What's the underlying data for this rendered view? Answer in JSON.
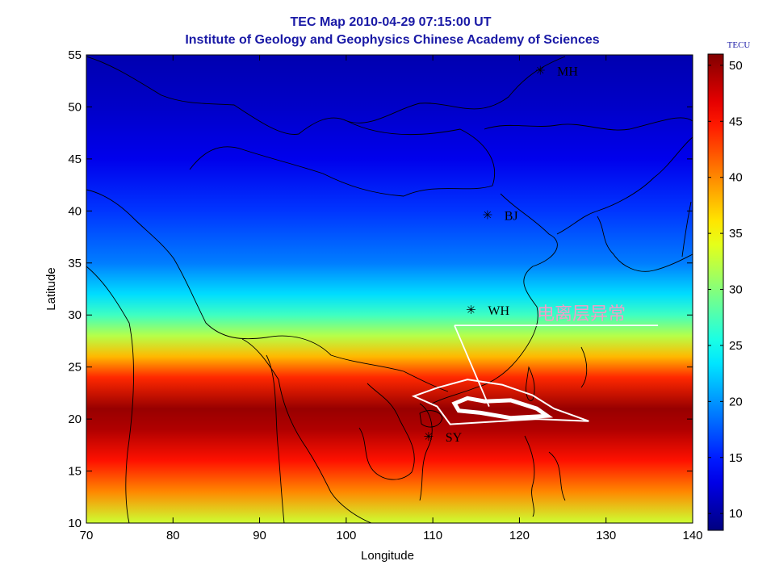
{
  "chart_data": {
    "type": "heatmap",
    "title": "TEC Map 2010-04-29 07:15:00 UT",
    "subtitle": "Institute of Geology and Geophysics Chinese Academy of Sciences",
    "xlabel": "Longitude",
    "ylabel": "Latitude",
    "xlim": [
      70,
      140
    ],
    "ylim": [
      10,
      55
    ],
    "xticks": [
      70,
      80,
      90,
      100,
      110,
      120,
      130,
      140
    ],
    "yticks": [
      10,
      15,
      20,
      25,
      30,
      35,
      40,
      45,
      50,
      55
    ],
    "colorbar": {
      "label": "TECU",
      "range": [
        8.5,
        51
      ],
      "ticks": [
        10,
        15,
        20,
        25,
        30,
        35,
        40,
        45,
        50
      ],
      "colormap": "jet"
    },
    "tec_profile_by_latitude": [
      {
        "lat": 10,
        "tec": 33
      },
      {
        "lat": 13,
        "tec": 40
      },
      {
        "lat": 16,
        "tec": 45
      },
      {
        "lat": 19,
        "tec": 49
      },
      {
        "lat": 21,
        "tec": 50
      },
      {
        "lat": 24,
        "tec": 44
      },
      {
        "lat": 26,
        "tec": 38
      },
      {
        "lat": 28,
        "tec": 32
      },
      {
        "lat": 30,
        "tec": 27
      },
      {
        "lat": 32,
        "tec": 23
      },
      {
        "lat": 35,
        "tec": 19
      },
      {
        "lat": 40,
        "tec": 16
      },
      {
        "lat": 45,
        "tec": 13
      },
      {
        "lat": 50,
        "tec": 11.5
      },
      {
        "lat": 55,
        "tec": 10.5
      }
    ],
    "stations": [
      {
        "name": "MH",
        "lon": 122.4,
        "lat": 53.5
      },
      {
        "name": "BJ",
        "lon": 116.3,
        "lat": 39.6
      },
      {
        "name": "WH",
        "lon": 114.4,
        "lat": 30.5
      },
      {
        "name": "SY",
        "lon": 109.5,
        "lat": 18.3
      }
    ],
    "annotation": {
      "text": "电离层异常",
      "color": "#f39cc8",
      "pointer_line": [
        [
          112.5,
          29.0
        ],
        [
          116.5,
          21.2
        ]
      ],
      "underline": [
        [
          112.5,
          29.0
        ],
        [
          136.0,
          29.0
        ]
      ]
    },
    "anomaly_contours": [
      {
        "level": "outer",
        "points": [
          [
            107.8,
            22.2
          ],
          [
            110.5,
            23.0
          ],
          [
            114.0,
            23.8
          ],
          [
            118.0,
            23.3
          ],
          [
            121.5,
            22.3
          ],
          [
            124.0,
            21.0
          ],
          [
            128.0,
            19.8
          ],
          [
            122.0,
            20.0
          ],
          [
            116.0,
            19.7
          ],
          [
            112.0,
            19.5
          ],
          [
            110.5,
            21.2
          ]
        ]
      },
      {
        "level": "inner",
        "points": [
          [
            112.5,
            21.5
          ],
          [
            114.0,
            22.0
          ],
          [
            116.0,
            21.7
          ],
          [
            119.0,
            21.8
          ],
          [
            122.0,
            21.0
          ],
          [
            123.2,
            20.3
          ],
          [
            119.0,
            20.1
          ],
          [
            115.5,
            20.6
          ],
          [
            113.0,
            20.8
          ]
        ]
      }
    ]
  }
}
